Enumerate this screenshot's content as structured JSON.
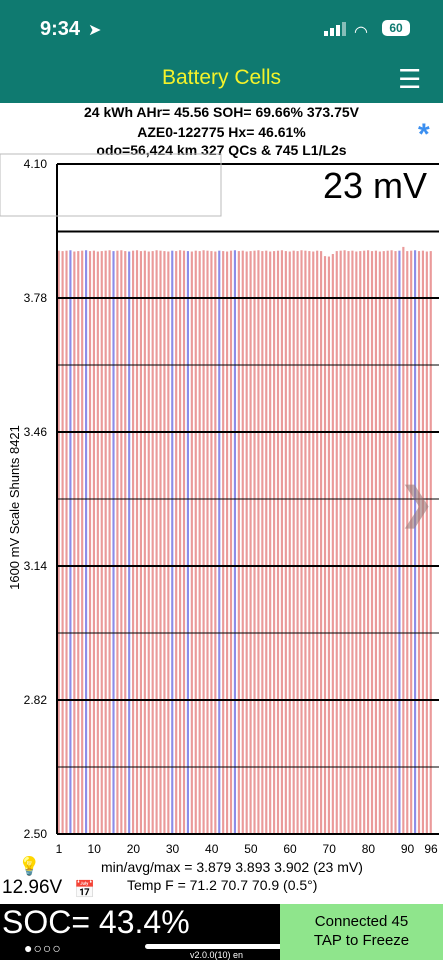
{
  "statusbar": {
    "time": "9:34",
    "battery": "60"
  },
  "navbar": {
    "title": "Battery Cells"
  },
  "summary": {
    "line1": "24 kWh  AHr= 45.56  SOH= 69.66%   373.75V",
    "line2": "AZE0-122775   Hx= 46.61%",
    "line3": "odo=56,424 km 327 QCs & 745 L1/L2s"
  },
  "chart_data": {
    "type": "bar",
    "title": "",
    "spread_label": "23 mV",
    "ylabel": "1600 mV Scale   Shunts 8421",
    "ylim": [
      2.5,
      4.1
    ],
    "yticks": [
      "4.10",
      "3.78",
      "3.46",
      "3.14",
      "2.82",
      "2.50"
    ],
    "xticks": [
      "1",
      "10",
      "20",
      "30",
      "40",
      "50",
      "60",
      "70",
      "80",
      "90",
      "96"
    ],
    "cell_count": 96,
    "shunted_cells": [
      4,
      8,
      15,
      19,
      30,
      34,
      42,
      46,
      88,
      92
    ],
    "values": [
      3.893,
      3.892,
      3.893,
      3.894,
      3.891,
      3.892,
      3.893,
      3.894,
      3.892,
      3.893,
      3.891,
      3.892,
      3.893,
      3.894,
      3.892,
      3.893,
      3.894,
      3.892,
      3.891,
      3.893,
      3.894,
      3.892,
      3.893,
      3.891,
      3.892,
      3.894,
      3.893,
      3.892,
      3.891,
      3.893,
      3.892,
      3.894,
      3.893,
      3.892,
      3.891,
      3.893,
      3.892,
      3.894,
      3.893,
      3.892,
      3.891,
      3.893,
      3.892,
      3.891,
      3.893,
      3.894,
      3.892,
      3.893,
      3.891,
      3.892,
      3.893,
      3.894,
      3.892,
      3.893,
      3.891,
      3.892,
      3.893,
      3.894,
      3.892,
      3.891,
      3.893,
      3.892,
      3.894,
      3.893,
      3.892,
      3.891,
      3.893,
      3.892,
      3.88,
      3.879,
      3.885,
      3.892,
      3.893,
      3.894,
      3.892,
      3.893,
      3.891,
      3.892,
      3.893,
      3.894,
      3.892,
      3.893,
      3.891,
      3.892,
      3.893,
      3.894,
      3.892,
      3.893,
      3.902,
      3.892,
      3.893,
      3.894,
      3.892,
      3.893,
      3.891,
      3.892
    ],
    "bar_color": "#ea9a9a",
    "shunt_color": "#8c8ce8"
  },
  "readings": {
    "pack_voltage": "12.96V",
    "minavgmax": "min/avg/max = 3.879 3.893 3.902  (23 mV)",
    "temp": "Temp F = 71.2  70.7  70.9  (0.5°)"
  },
  "bottom": {
    "soc": "SOC= 43.4%",
    "dots": "●○○○",
    "version": "v2.0.0(10) en",
    "connected": "Connected 45",
    "tap": "TAP to Freeze"
  },
  "icons": {
    "location": "location-arrow-icon",
    "signal": "signal-bars-icon",
    "wifi": "wifi-icon",
    "menu": "hamburger-menu-icon",
    "bulb": "lightbulb-icon",
    "calendar": "calendar-icon",
    "star": "asterisk-icon",
    "chevron": "chevron-right-icon"
  }
}
